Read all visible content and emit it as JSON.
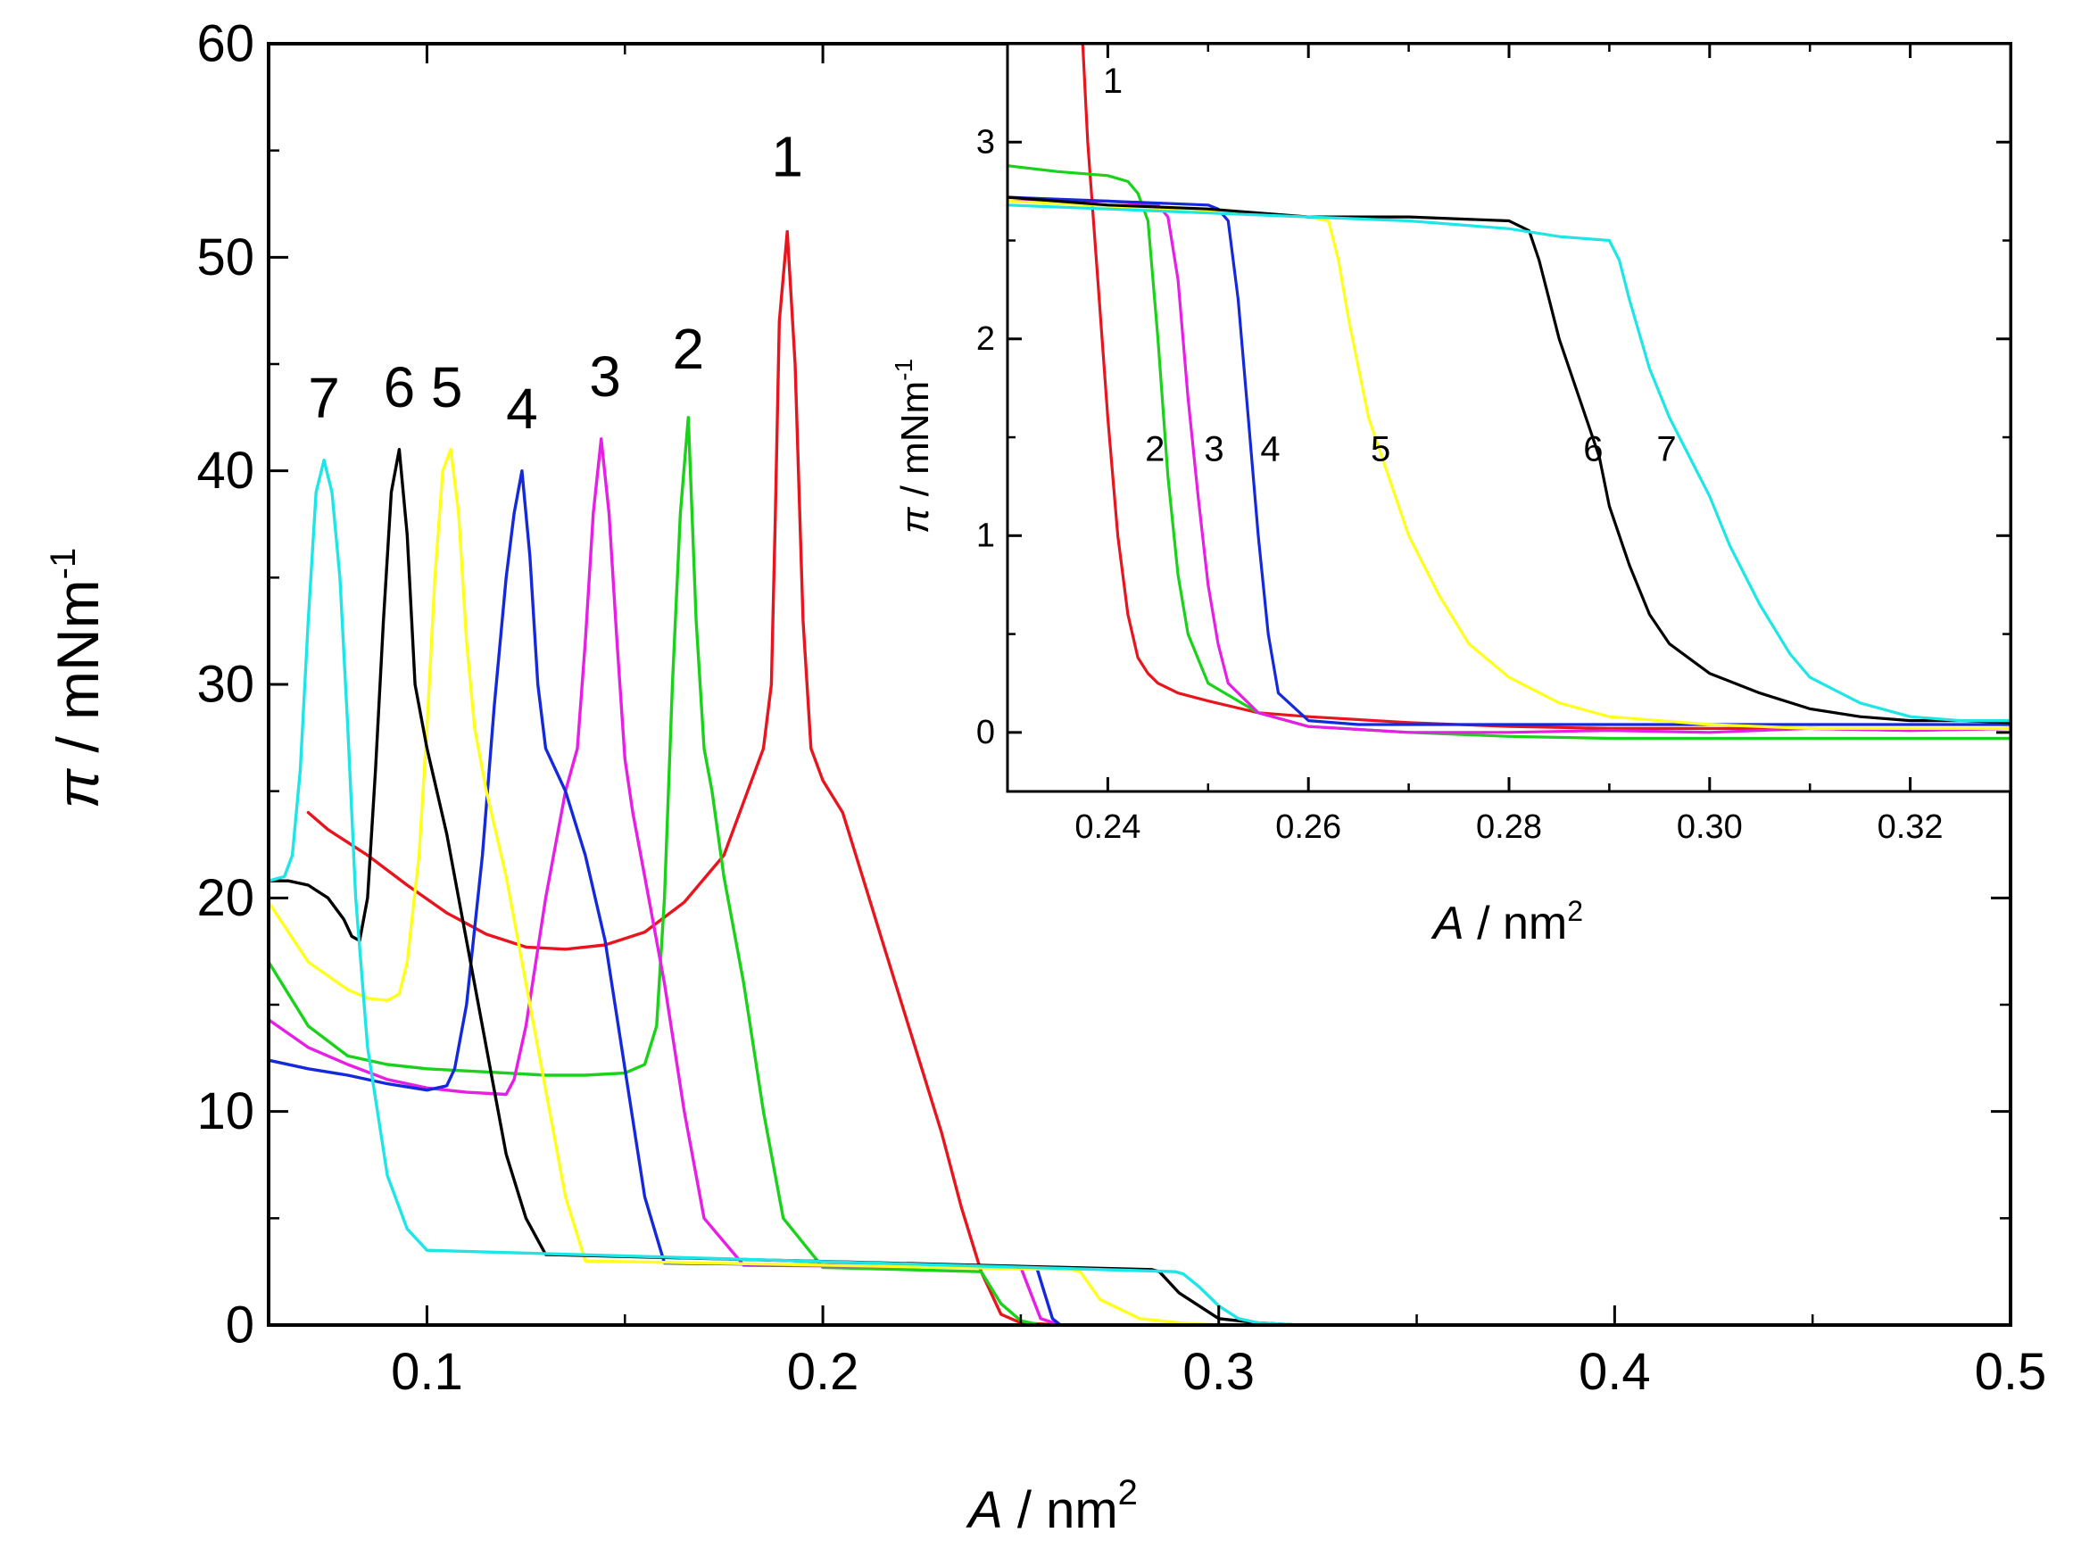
{
  "chart_data": [
    {
      "id": "main",
      "type": "line",
      "title": "",
      "xlabel_symbol": "A",
      "xlabel_unit": " / nm",
      "xlabel_sup": "2",
      "ylabel_symbol": "π",
      "ylabel_unit": " / mNm",
      "ylabel_sup": "-1",
      "xlim": [
        0.06,
        0.5
      ],
      "ylim": [
        0,
        60
      ],
      "x_ticks": [
        0.1,
        0.2,
        0.3,
        0.4,
        0.5
      ],
      "x_tick_labels": [
        "0.1",
        "0.2",
        "0.3",
        "0.4",
        "0.5"
      ],
      "x_minor_ticks": [
        0.15,
        0.25,
        0.35,
        0.45
      ],
      "y_ticks": [
        0,
        10,
        20,
        30,
        40,
        50,
        60
      ],
      "y_tick_labels": [
        "0",
        "10",
        "20",
        "30",
        "40",
        "50",
        "60"
      ],
      "y_minor_ticks": [
        5,
        15,
        25,
        35,
        45,
        55
      ],
      "grid": false,
      "series": [
        {
          "name": "1",
          "color": "#e8141e",
          "label_xy": [
            0.191,
            53.8
          ],
          "x": [
            0.35,
            0.3,
            0.26,
            0.25,
            0.245,
            0.24,
            0.235,
            0.23,
            0.225,
            0.22,
            0.215,
            0.21,
            0.205,
            0.2,
            0.197,
            0.195,
            0.193,
            0.191,
            0.189,
            0.188,
            0.187,
            0.185,
            0.183,
            0.175,
            0.165,
            0.155,
            0.145,
            0.135,
            0.125,
            0.115,
            0.105,
            0.095,
            0.085,
            0.075,
            0.07
          ],
          "y": [
            0,
            0,
            0,
            0.1,
            0.5,
            2.5,
            5.5,
            9,
            12,
            15,
            18,
            21,
            24,
            25.5,
            27,
            33,
            45,
            51.2,
            47,
            38,
            30,
            27,
            26,
            22,
            19.8,
            18.4,
            17.8,
            17.6,
            17.7,
            18.3,
            19.3,
            20.6,
            22,
            23.2,
            24
          ]
        },
        {
          "name": "2",
          "color": "#19d219",
          "label_xy": [
            0.166,
            44.8
          ],
          "x": [
            0.35,
            0.3,
            0.27,
            0.255,
            0.25,
            0.245,
            0.24,
            0.2,
            0.19,
            0.185,
            0.18,
            0.175,
            0.172,
            0.17,
            0.168,
            0.166,
            0.164,
            0.162,
            0.16,
            0.158,
            0.155,
            0.15,
            0.14,
            0.13,
            0.12,
            0.11,
            0.1,
            0.09,
            0.08,
            0.07,
            0.06
          ],
          "y": [
            0,
            0,
            0,
            0,
            0.2,
            1,
            2.5,
            2.7,
            5,
            10,
            16,
            21,
            25,
            27,
            33,
            42.5,
            38,
            30,
            20,
            14,
            12.2,
            11.8,
            11.7,
            11.7,
            11.8,
            11.9,
            12,
            12.2,
            12.6,
            14,
            17
          ]
        },
        {
          "name": "3",
          "color": "#e61ee6",
          "label_xy": [
            0.145,
            43.5
          ],
          "x": [
            0.35,
            0.3,
            0.27,
            0.26,
            0.255,
            0.25,
            0.18,
            0.17,
            0.165,
            0.16,
            0.155,
            0.152,
            0.15,
            0.148,
            0.146,
            0.144,
            0.142,
            0.14,
            0.138,
            0.135,
            0.13,
            0.125,
            0.122,
            0.12,
            0.11,
            0.1,
            0.09,
            0.08,
            0.07,
            0.06
          ],
          "y": [
            0,
            0,
            0,
            0,
            0.3,
            2.7,
            2.8,
            5,
            10,
            16,
            21,
            24,
            26.5,
            32,
            38,
            41.5,
            38,
            32,
            27,
            25,
            20,
            14,
            11.5,
            10.8,
            10.9,
            11.1,
            11.5,
            12.2,
            13,
            14.3
          ]
        },
        {
          "name": "4",
          "color": "#1428dc",
          "label_xy": [
            0.124,
            42
          ]
        },
        {
          "name": "5",
          "color": "#ffff1e",
          "label_xy": [
            0.105,
            43
          ]
        },
        {
          "name": "6",
          "color": "#000000",
          "label_xy": [
            0.093,
            43
          ]
        },
        {
          "name": "7",
          "color": "#1ee6e6",
          "label_xy": [
            0.074,
            42.5
          ]
        }
      ],
      "extra_series_data": {
        "4": {
          "x": [
            0.35,
            0.3,
            0.27,
            0.26,
            0.258,
            0.256,
            0.254,
            0.16,
            0.155,
            0.15,
            0.145,
            0.14,
            0.135,
            0.13,
            0.128,
            0.126,
            0.124,
            0.122,
            0.12,
            0.117,
            0.114,
            0.11,
            0.107,
            0.105,
            0.1,
            0.09,
            0.08,
            0.07,
            0.06
          ],
          "y": [
            0,
            0,
            0,
            0,
            0.3,
            1.5,
            2.7,
            2.9,
            6,
            12,
            18,
            22,
            25,
            27,
            30,
            36,
            40,
            38,
            35,
            29,
            22,
            15,
            12,
            11.2,
            11,
            11.3,
            11.7,
            12,
            12.4
          ]
        },
        "5": {
          "x": [
            0.35,
            0.3,
            0.29,
            0.28,
            0.27,
            0.265,
            0.263,
            0.14,
            0.135,
            0.13,
            0.125,
            0.12,
            0.115,
            0.112,
            0.11,
            0.108,
            0.106,
            0.104,
            0.102,
            0.1,
            0.098,
            0.095,
            0.093,
            0.09,
            0.085,
            0.08,
            0.07,
            0.06
          ],
          "y": [
            0,
            0,
            0.1,
            0.3,
            1.2,
            2.5,
            2.6,
            3,
            6,
            11,
            16,
            21,
            25,
            28,
            32,
            38,
            41,
            40,
            35,
            28,
            22,
            17,
            15.5,
            15.2,
            15.3,
            15.7,
            17,
            19.8
          ]
        },
        "6": {
          "x": [
            0.35,
            0.32,
            0.31,
            0.3,
            0.29,
            0.285,
            0.283,
            0.13,
            0.125,
            0.12,
            0.115,
            0.11,
            0.105,
            0.1,
            0.097,
            0.095,
            0.093,
            0.091,
            0.089,
            0.087,
            0.085,
            0.083,
            0.081,
            0.079,
            0.077,
            0.075,
            0.07,
            0.065,
            0.06
          ],
          "y": [
            0,
            0,
            0.1,
            0.3,
            1.5,
            2.5,
            2.6,
            3.3,
            5,
            8,
            13,
            18,
            23,
            27,
            30,
            37,
            41,
            39,
            33,
            26,
            20,
            18,
            18.2,
            19,
            19.5,
            20,
            20.6,
            20.8,
            20.8
          ]
        },
        "7": {
          "x": [
            0.35,
            0.32,
            0.31,
            0.305,
            0.3,
            0.295,
            0.291,
            0.289,
            0.1,
            0.095,
            0.09,
            0.085,
            0.082,
            0.08,
            0.078,
            0.076,
            0.074,
            0.072,
            0.07,
            0.068,
            0.066,
            0.064,
            0.062,
            0.06
          ],
          "y": [
            0,
            0,
            0.1,
            0.3,
            0.9,
            1.8,
            2.4,
            2.5,
            3.5,
            4.5,
            7,
            13,
            20,
            28,
            35,
            39,
            40.5,
            39,
            33,
            26,
            22,
            21,
            20.9,
            20.8
          ]
        }
      }
    },
    {
      "id": "inset",
      "type": "line",
      "xlabel_symbol": "A",
      "xlabel_unit": " / nm",
      "xlabel_sup": "2",
      "ylabel_symbol": "π",
      "ylabel_unit": " / mNm",
      "ylabel_sup": "-1",
      "xlim": [
        0.23,
        0.33
      ],
      "ylim": [
        -0.3,
        3.5
      ],
      "x_ticks": [
        0.24,
        0.26,
        0.28,
        0.3,
        0.32
      ],
      "x_tick_labels": [
        "0.24",
        "0.26",
        "0.28",
        "0.30",
        "0.32"
      ],
      "x_minor_ticks": [
        0.23,
        0.25,
        0.27,
        0.29,
        0.31,
        0.33
      ],
      "y_ticks": [
        0,
        1,
        2,
        3
      ],
      "y_tick_labels": [
        "0",
        "1",
        "2",
        "3"
      ],
      "y_minor_ticks": [
        0.5,
        1.5,
        2.5
      ],
      "grid": false,
      "series": [
        {
          "name": "1",
          "color": "#e8141e",
          "label_xy": [
            0.2405,
            3.25
          ],
          "x": [
            0.2375,
            0.238,
            0.239,
            0.24,
            0.241,
            0.242,
            0.243,
            0.244,
            0.245,
            0.247,
            0.25,
            0.255,
            0.26,
            0.27,
            0.28,
            0.29,
            0.3,
            0.31,
            0.32,
            0.33
          ],
          "y": [
            3.5,
            3.0,
            2.3,
            1.6,
            1.0,
            0.6,
            0.38,
            0.3,
            0.25,
            0.2,
            0.16,
            0.1,
            0.08,
            0.05,
            0.03,
            0.02,
            0.02,
            0.02,
            0.01,
            0.02
          ]
        },
        {
          "name": "2",
          "color": "#19d219",
          "label_xy": [
            0.2447,
            1.38
          ],
          "x": [
            0.23,
            0.235,
            0.24,
            0.242,
            0.243,
            0.244,
            0.245,
            0.246,
            0.247,
            0.248,
            0.25,
            0.255,
            0.26,
            0.27,
            0.28,
            0.29,
            0.3,
            0.31,
            0.32,
            0.33
          ],
          "y": [
            2.88,
            2.85,
            2.83,
            2.8,
            2.74,
            2.6,
            2.0,
            1.3,
            0.8,
            0.5,
            0.25,
            0.1,
            0.03,
            0.0,
            -0.02,
            -0.03,
            -0.03,
            -0.03,
            -0.03,
            -0.03
          ]
        },
        {
          "name": "3",
          "color": "#e61ee6",
          "label_xy": [
            0.2506,
            1.38
          ],
          "x": [
            0.23,
            0.24,
            0.245,
            0.246,
            0.247,
            0.248,
            0.249,
            0.25,
            0.251,
            0.252,
            0.255,
            0.26,
            0.27,
            0.28,
            0.29,
            0.3,
            0.31,
            0.32,
            0.33
          ],
          "y": [
            2.7,
            2.7,
            2.68,
            2.62,
            2.3,
            1.7,
            1.2,
            0.75,
            0.45,
            0.25,
            0.1,
            0.03,
            0.0,
            0.0,
            0.01,
            0.0,
            0.02,
            0.01,
            0.02
          ]
        },
        {
          "name": "4",
          "color": "#1428dc",
          "label_xy": [
            0.2562,
            1.38
          ],
          "x": [
            0.23,
            0.24,
            0.25,
            0.251,
            0.252,
            0.253,
            0.254,
            0.255,
            0.256,
            0.257,
            0.26,
            0.265,
            0.27,
            0.28,
            0.29,
            0.3,
            0.31,
            0.32,
            0.33
          ],
          "y": [
            2.72,
            2.7,
            2.68,
            2.66,
            2.6,
            2.2,
            1.6,
            1.0,
            0.5,
            0.2,
            0.06,
            0.04,
            0.04,
            0.04,
            0.04,
            0.04,
            0.04,
            0.04,
            0.04
          ]
        },
        {
          "name": "5",
          "color": "#ffff1e",
          "label_xy": [
            0.2672,
            1.38
          ],
          "x": [
            0.23,
            0.25,
            0.26,
            0.262,
            0.263,
            0.264,
            0.265,
            0.266,
            0.268,
            0.27,
            0.273,
            0.276,
            0.28,
            0.285,
            0.29,
            0.3,
            0.31,
            0.32,
            0.33
          ],
          "y": [
            2.7,
            2.65,
            2.62,
            2.6,
            2.4,
            2.1,
            1.85,
            1.6,
            1.3,
            1.0,
            0.7,
            0.45,
            0.28,
            0.15,
            0.08,
            0.04,
            0.02,
            0.02,
            0.02
          ]
        },
        {
          "name": "6",
          "color": "#000000",
          "label_xy": [
            0.2884,
            1.38
          ],
          "x": [
            0.23,
            0.24,
            0.25,
            0.26,
            0.27,
            0.28,
            0.282,
            0.283,
            0.284,
            0.285,
            0.287,
            0.289,
            0.29,
            0.292,
            0.294,
            0.296,
            0.3,
            0.305,
            0.31,
            0.315,
            0.32,
            0.325,
            0.33
          ],
          "y": [
            2.72,
            2.68,
            2.66,
            2.62,
            2.62,
            2.6,
            2.55,
            2.4,
            2.2,
            2.0,
            1.7,
            1.4,
            1.15,
            0.85,
            0.6,
            0.45,
            0.3,
            0.2,
            0.12,
            0.08,
            0.06,
            0.06,
            0.05
          ]
        },
        {
          "name": "7",
          "color": "#1ee6e6",
          "label_xy": [
            0.2957,
            1.38
          ],
          "x": [
            0.23,
            0.24,
            0.25,
            0.26,
            0.27,
            0.28,
            0.285,
            0.29,
            0.291,
            0.292,
            0.294,
            0.296,
            0.298,
            0.3,
            0.302,
            0.305,
            0.308,
            0.31,
            0.315,
            0.32,
            0.325,
            0.33
          ],
          "y": [
            2.68,
            2.66,
            2.64,
            2.62,
            2.6,
            2.56,
            2.52,
            2.5,
            2.4,
            2.2,
            1.85,
            1.6,
            1.4,
            1.2,
            0.95,
            0.65,
            0.4,
            0.28,
            0.15,
            0.08,
            0.06,
            0.06
          ]
        }
      ]
    }
  ]
}
